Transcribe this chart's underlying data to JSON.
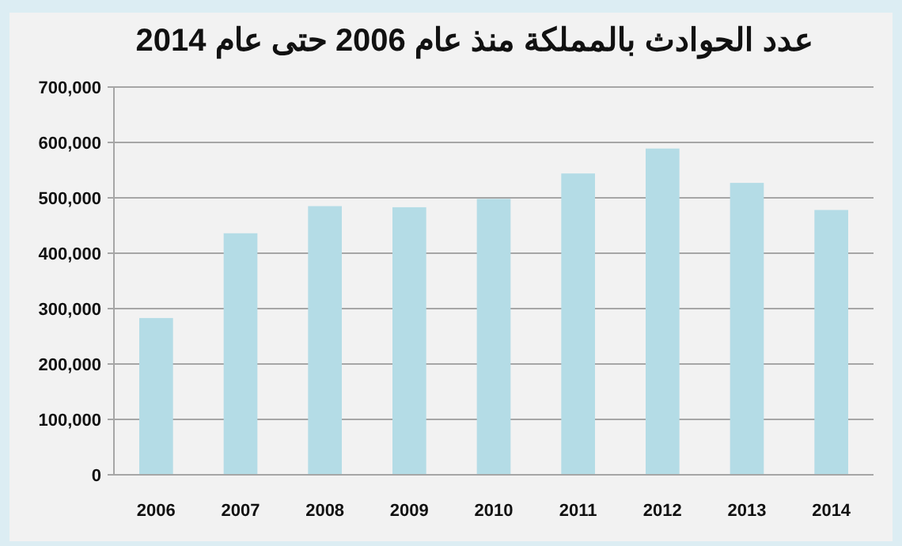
{
  "chart_data": {
    "type": "bar",
    "title": "عدد الحوادث بالمملكة  منذ عام 2006 حتى عام 2014",
    "categories": [
      "2006",
      "2007",
      "2008",
      "2009",
      "2010",
      "2011",
      "2012",
      "2013",
      "2014"
    ],
    "values": [
      283000,
      436000,
      485000,
      483000,
      498000,
      544000,
      589000,
      527000,
      478000
    ],
    "color": "#b4dce6",
    "ylim": [
      0,
      700000
    ],
    "yticks": [
      0,
      {
        "value": 100000,
        "label": "100,000"
      },
      {
        "value": 200000,
        "label": "200,000"
      },
      {
        "value": 300000,
        "label": "300,000"
      },
      {
        "value": 400000,
        "label": "400,000"
      },
      {
        "value": 500000,
        "label": "500,000"
      },
      {
        "value": 600000,
        "label": "600,000"
      },
      {
        "value": 700000,
        "label": "700,000"
      }
    ],
    "grid": "y"
  }
}
